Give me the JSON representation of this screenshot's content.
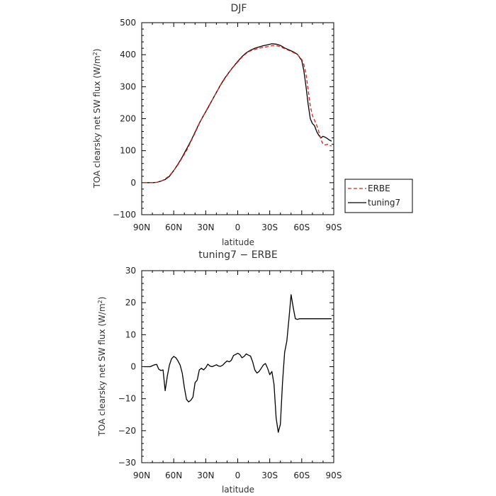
{
  "chart_data": [
    {
      "type": "line",
      "title": "DJF",
      "xlabel": "latitude",
      "ylabel_prefix": "TOA clearsky net SW flux (W/m",
      "ylabel_sup": "2",
      "ylabel_suffix": ")",
      "xlim": [
        -90,
        90
      ],
      "ylim": [
        -100,
        500
      ],
      "xticks": [
        -90,
        -60,
        -30,
        0,
        30,
        60,
        90
      ],
      "xtick_labels": [
        "90N",
        "60N",
        "30N",
        "0",
        "30S",
        "60S",
        "90S"
      ],
      "yticks": [
        -100,
        0,
        100,
        200,
        300,
        400,
        500
      ],
      "ytick_labels": [
        "−100",
        "0",
        "100",
        "200",
        "300",
        "400",
        "500"
      ],
      "legend": {
        "placement": "right",
        "entries": [
          "ERBE",
          "tuning7"
        ]
      },
      "series": [
        {
          "name": "ERBE",
          "color": "#e0201b",
          "dash": true,
          "x": [
            -88,
            -84,
            -80,
            -76,
            -72,
            -68,
            -64,
            -60,
            -56,
            -52,
            -48,
            -44,
            -40,
            -36,
            -32,
            -28,
            -24,
            -20,
            -16,
            -12,
            -8,
            -4,
            0,
            4,
            8,
            12,
            16,
            20,
            24,
            28,
            32,
            36,
            40,
            44,
            48,
            52,
            56,
            60,
            62,
            64,
            66,
            68,
            70,
            72,
            74,
            76,
            78,
            80,
            82,
            84,
            86,
            88
          ],
          "y": [
            0,
            0,
            0,
            1,
            4,
            12,
            22,
            38,
            56,
            78,
            100,
            128,
            155,
            185,
            210,
            235,
            258,
            282,
            305,
            325,
            345,
            362,
            377,
            392,
            404,
            412,
            416,
            420,
            423,
            425,
            428,
            428,
            425,
            419,
            413,
            407,
            400,
            385,
            370,
            340,
            290,
            240,
            210,
            195,
            180,
            160,
            135,
            120,
            118,
            120,
            116,
            115
          ]
        },
        {
          "name": "tuning7",
          "color": "#000000",
          "dash": false,
          "x": [
            -88,
            -84,
            -80,
            -76,
            -72,
            -68,
            -64,
            -60,
            -56,
            -52,
            -48,
            -44,
            -40,
            -36,
            -32,
            -28,
            -24,
            -20,
            -16,
            -12,
            -8,
            -4,
            0,
            4,
            8,
            12,
            16,
            20,
            24,
            28,
            32,
            36,
            40,
            44,
            48,
            52,
            56,
            60,
            62,
            64,
            66,
            68,
            70,
            72,
            74,
            76,
            78,
            80,
            82,
            84,
            86,
            88
          ],
          "y": [
            0,
            0,
            0,
            1,
            5,
            10,
            20,
            38,
            58,
            80,
            105,
            130,
            158,
            186,
            210,
            233,
            258,
            282,
            306,
            327,
            346,
            363,
            379,
            394,
            406,
            414,
            420,
            424,
            428,
            431,
            434,
            433,
            429,
            421,
            415,
            409,
            401,
            382,
            350,
            300,
            245,
            200,
            185,
            178,
            160,
            148,
            140,
            145,
            142,
            138,
            133,
            130
          ]
        }
      ]
    },
    {
      "type": "line",
      "title": "tuning7 − ERBE",
      "xlabel": "latitude",
      "ylabel_prefix": "TOA clearsky net SW flux (W/m",
      "ylabel_sup": "2",
      "ylabel_suffix": ")",
      "xlim": [
        -90,
        90
      ],
      "ylim": [
        -30,
        30
      ],
      "xticks": [
        -90,
        -60,
        -30,
        0,
        30,
        60,
        90
      ],
      "xtick_labels": [
        "90N",
        "60N",
        "30N",
        "0",
        "30S",
        "60S",
        "90S"
      ],
      "yticks": [
        -30,
        -20,
        -10,
        0,
        10,
        20,
        30
      ],
      "ytick_labels": [
        "−30",
        "−20",
        "−10",
        "0",
        "10",
        "20",
        "30"
      ],
      "series": [
        {
          "color": "#000000",
          "x": [
            -88,
            -86,
            -84,
            -82,
            -80,
            -78,
            -76,
            -74,
            -72,
            -70,
            -68,
            -66,
            -64,
            -62,
            -60,
            -58,
            -56,
            -54,
            -52,
            -50,
            -48,
            -46,
            -44,
            -42,
            -40,
            -38,
            -36,
            -34,
            -32,
            -30,
            -28,
            -26,
            -24,
            -22,
            -20,
            -18,
            -16,
            -14,
            -12,
            -10,
            -8,
            -6,
            -4,
            -2,
            0,
            2,
            4,
            6,
            8,
            10,
            12,
            14,
            16,
            18,
            20,
            22,
            24,
            26,
            28,
            30,
            32,
            34,
            36,
            38,
            40,
            42,
            44,
            46,
            48,
            50,
            52,
            54,
            56,
            58,
            60,
            62,
            64,
            66,
            68,
            70,
            72,
            74,
            76,
            78,
            80,
            82,
            84,
            86,
            88
          ],
          "y": [
            0,
            0,
            0,
            0,
            0.3,
            0.6,
            0.7,
            -0.8,
            -1.2,
            -1.0,
            -7.5,
            -3.0,
            0.5,
            2.5,
            3.2,
            2.8,
            1.8,
            0.5,
            -2.0,
            -6.5,
            -10.2,
            -11.0,
            -10.5,
            -9.5,
            -5.0,
            -4.2,
            -1.0,
            -0.5,
            -1.0,
            -0.3,
            0.8,
            0.2,
            0.0,
            0.3,
            0.6,
            0.2,
            0.1,
            0.5,
            1.2,
            1.8,
            1.5,
            2.0,
            3.5,
            3.8,
            4.2,
            3.8,
            2.8,
            3.2,
            4.0,
            3.6,
            3.3,
            1.5,
            -1.0,
            -2.0,
            -1.5,
            -0.5,
            0.5,
            1.0,
            -0.5,
            -2.5,
            -1.5,
            -5.5,
            -16.0,
            -20.5,
            -18.0,
            -5.0,
            4.5,
            8.0,
            15.0,
            22.5,
            18.5,
            15.0,
            14.8,
            15.0,
            15.0,
            15.0,
            15.0,
            15.0,
            15.0,
            15.0,
            15.0,
            15.0,
            15.0,
            15.0,
            15.0,
            15.0,
            15.0,
            15.0,
            15.0
          ]
        }
      ]
    }
  ]
}
